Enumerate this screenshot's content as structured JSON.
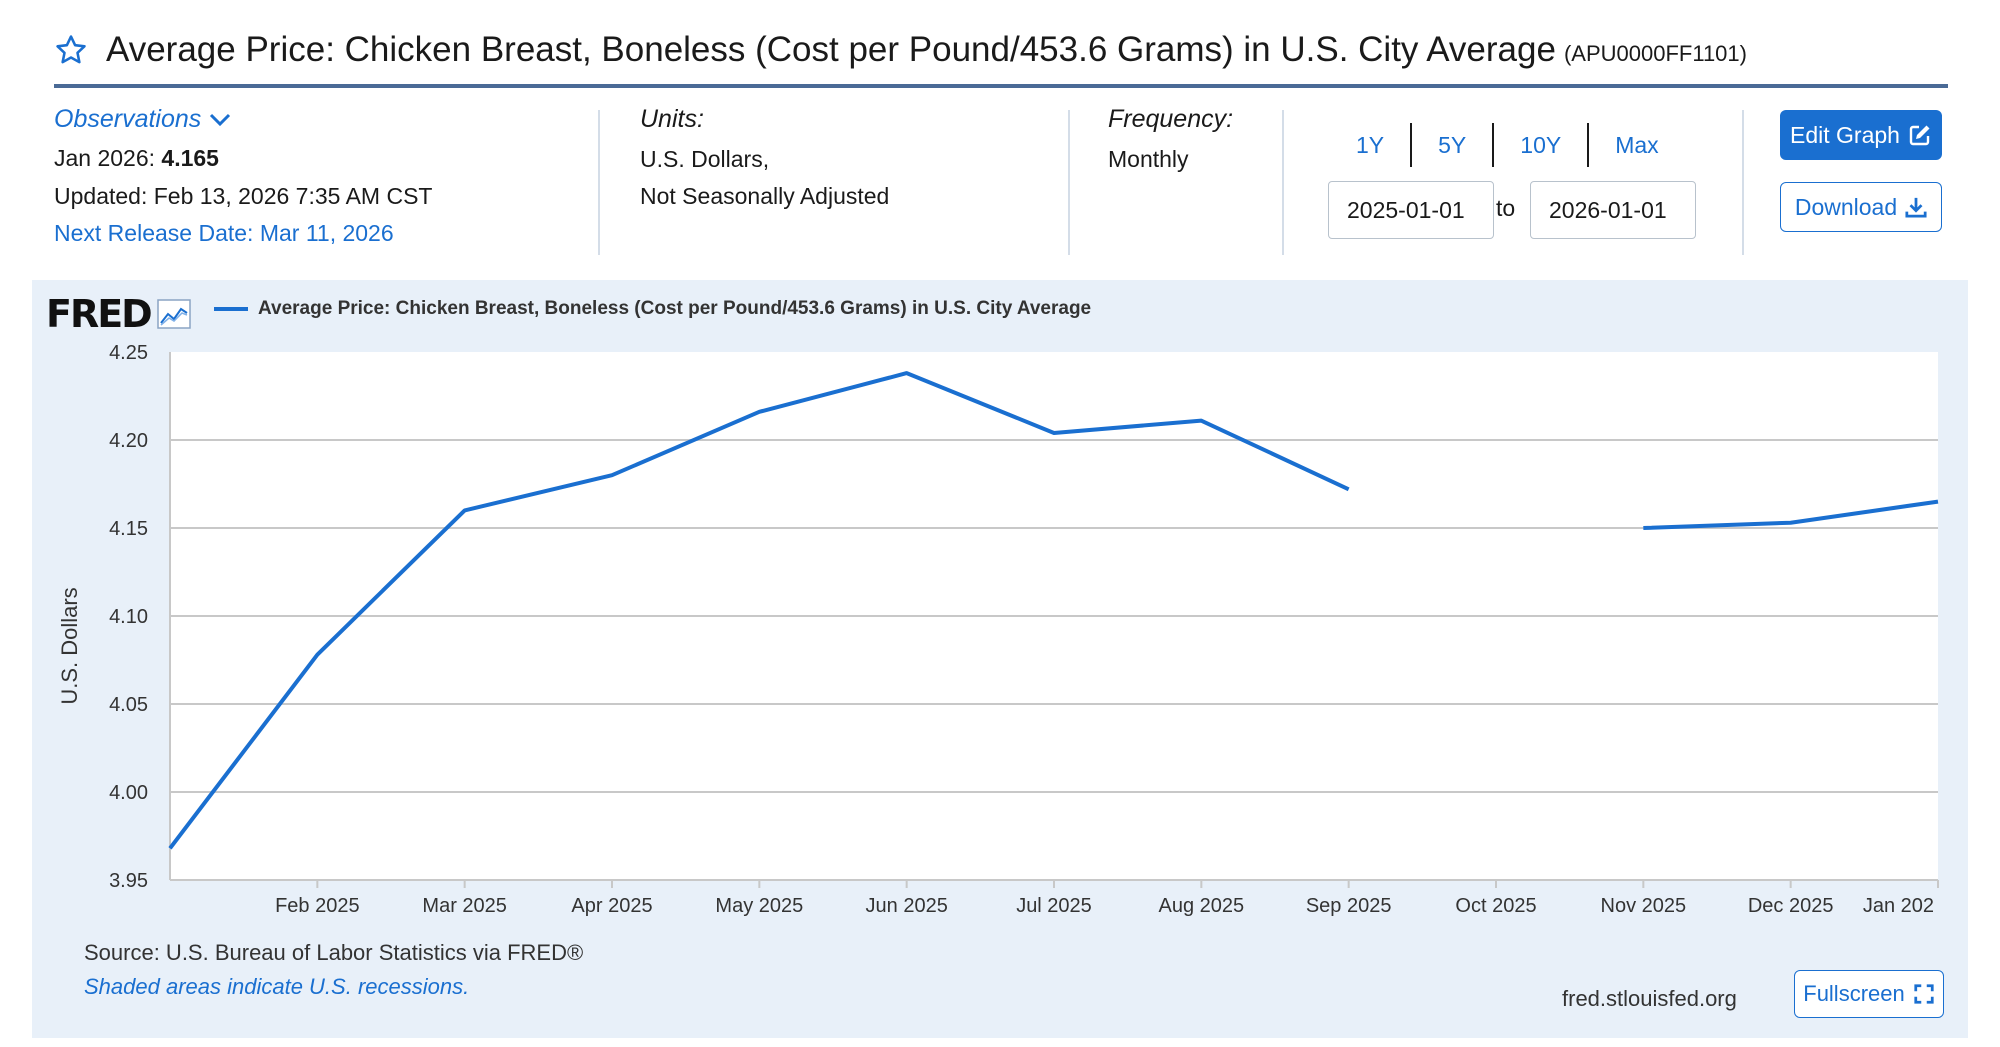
{
  "header": {
    "title": "Average Price: Chicken Breast, Boneless (Cost per Pound/453.6 Grams) in U.S. City Average",
    "series_id": "(APU0000FF1101)",
    "star_icon": "star-outline-icon"
  },
  "observations": {
    "toggle_label": "Observations",
    "latest_label": "Jan 2026:",
    "latest_value": "4.165",
    "updated": "Updated: Feb 13, 2026 7:35 AM CST",
    "next_release": "Next Release Date: Mar 11, 2026"
  },
  "units": {
    "label": "Units:",
    "line1": "U.S. Dollars,",
    "line2": "Not Seasonally Adjusted"
  },
  "frequency": {
    "label": "Frequency:",
    "value": "Monthly"
  },
  "range": {
    "buttons": [
      "1Y",
      "5Y",
      "10Y",
      "Max"
    ],
    "start": "2025-01-01",
    "to_label": "to",
    "end": "2026-01-01"
  },
  "actions": {
    "edit_label": "Edit Graph",
    "download_label": "Download",
    "fullscreen_label": "Fullscreen"
  },
  "chart_footer": {
    "logo_text": "FRED",
    "source": "Source: U.S. Bureau of Labor Statistics via FRED®",
    "shaded_note": "Shaded areas indicate U.S. recessions.",
    "site": "fred.stlouisfed.org"
  },
  "colors": {
    "accent": "#1a6fd0",
    "line": "#1a6fd0",
    "panel_bg": "#e8f0f9",
    "title_rule": "#4a6a96"
  },
  "chart_data": {
    "type": "line",
    "title": "",
    "xlabel": "",
    "ylabel": "U.S. Dollars",
    "ylim": [
      3.95,
      4.25
    ],
    "y_ticks": [
      "4.25",
      "4.20",
      "4.15",
      "4.10",
      "4.05",
      "4.00",
      "3.95"
    ],
    "x_tick_labels": [
      "Feb 2025",
      "Mar 2025",
      "Apr 2025",
      "May 2025",
      "Jun 2025",
      "Jul 2025",
      "Aug 2025",
      "Sep 2025",
      "Oct 2025",
      "Nov 2025",
      "Dec 2025",
      "Jan 202"
    ],
    "legend_position": "top-left",
    "grid": true,
    "series": [
      {
        "name": "Average Price: Chicken Breast, Boneless (Cost per Pound/453.6 Grams) in U.S. City Average",
        "x": [
          "2025-01",
          "2025-02",
          "2025-03",
          "2025-04",
          "2025-05",
          "2025-06",
          "2025-07",
          "2025-08",
          "2025-09",
          "2025-10",
          "2025-11",
          "2025-12",
          "2026-01"
        ],
        "values": [
          3.968,
          4.078,
          4.16,
          4.18,
          4.216,
          4.238,
          4.204,
          4.211,
          4.172,
          null,
          4.15,
          4.153,
          4.165
        ]
      }
    ]
  }
}
